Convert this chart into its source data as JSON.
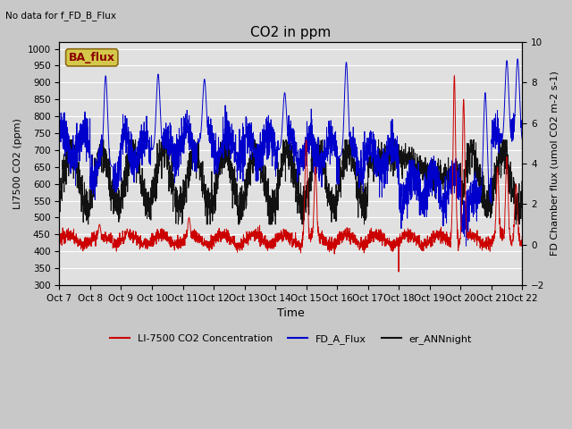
{
  "title": "CO2 in ppm",
  "top_left_text": "No data for f_FD_B_Flux",
  "watermark_text": "BA_flux",
  "ylabel_left": "LI7500 CO2 (ppm)",
  "ylabel_right": "FD Chamber flux (umol CO2 m-2 s-1)",
  "xlabel": "Time",
  "xlim": [
    0,
    15.0
  ],
  "ylim_left": [
    300,
    1020
  ],
  "ylim_right": [
    -2,
    10
  ],
  "yticks_left": [
    300,
    350,
    400,
    450,
    500,
    550,
    600,
    650,
    700,
    750,
    800,
    850,
    900,
    950,
    1000
  ],
  "yticks_right": [
    -2,
    0,
    2,
    4,
    6,
    8,
    10
  ],
  "xtick_labels": [
    "Oct 7",
    "Oct 8",
    "Oct 9",
    "Oct 10",
    "Oct 11",
    "Oct 12",
    "Oct 13",
    "Oct 14",
    "Oct 15",
    "Oct 16",
    "Oct 17",
    "Oct 18",
    "Oct 19",
    "Oct 20",
    "Oct 21",
    "Oct 22"
  ],
  "color_red": "#cc0000",
  "color_blue": "#0000cc",
  "color_black": "#111111",
  "legend_labels": [
    "LI-7500 CO2 Concentration",
    "FD_A_Flux",
    "er_ANNnight"
  ],
  "background_color": "#e0e0e0",
  "grid_color": "#ffffff",
  "fig_bg": "#c8c8c8",
  "watermark_bg": "#d4c84a",
  "watermark_fg": "#8b0000"
}
